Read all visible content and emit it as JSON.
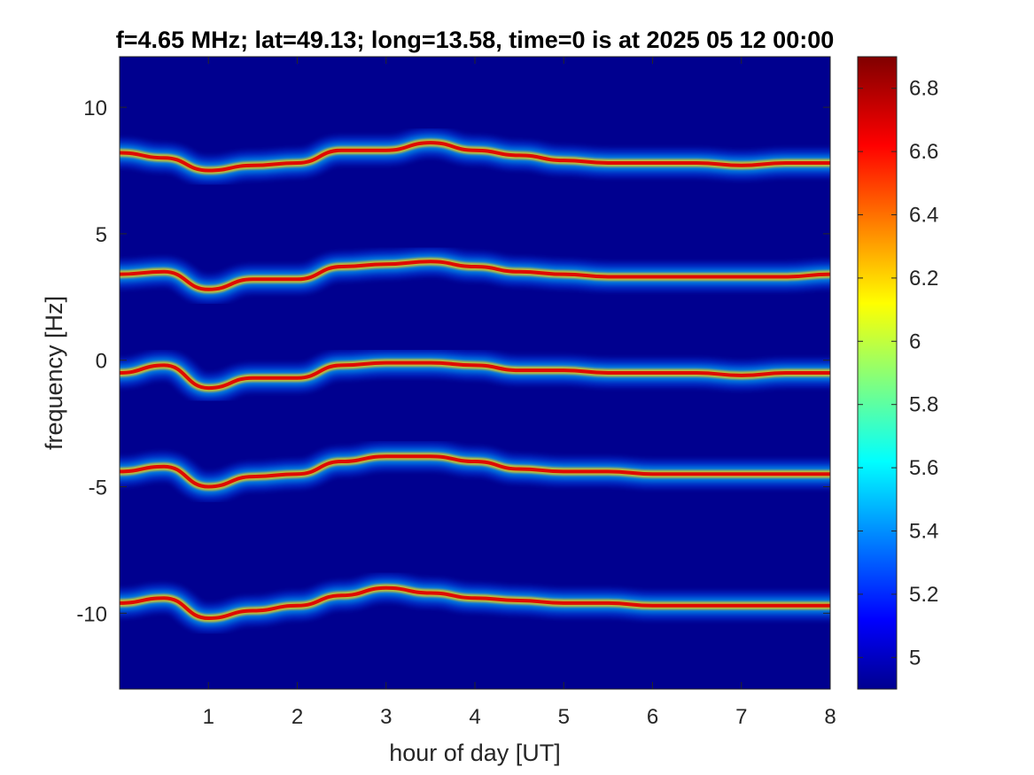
{
  "chart_data": {
    "type": "heatmap",
    "title": "f=4.65 MHz;  lat=49.13; long=13.58, time=0 is at 2025 05 12 00:00",
    "xlabel": "hour of day [UT]",
    "ylabel": "frequency [Hz]",
    "xlim": [
      0,
      8
    ],
    "ylim": [
      -13,
      12
    ],
    "xticks": [
      "1",
      "2",
      "3",
      "4",
      "5",
      "6",
      "7",
      "8"
    ],
    "yticks": [
      "-10",
      "-5",
      "0",
      "5",
      "10"
    ],
    "colorbar": {
      "colormap": "jet",
      "limits": [
        4.9,
        6.9
      ],
      "ticks": [
        "5",
        "5.2",
        "5.4",
        "5.6",
        "5.8",
        "6",
        "6.2",
        "6.4",
        "6.6",
        "6.8"
      ]
    },
    "background_value": 4.9,
    "series": [
      {
        "x": [
          0,
          0.5,
          1.0,
          1.5,
          2.0,
          2.5,
          3.0,
          3.5,
          4.0,
          4.5,
          5.0,
          5.5,
          6.0,
          6.5,
          7.0,
          7.5,
          8.0
        ],
        "y": [
          8.2,
          8.0,
          7.5,
          7.7,
          7.8,
          8.3,
          8.3,
          8.6,
          8.3,
          8.1,
          7.9,
          7.8,
          7.8,
          7.8,
          7.7,
          7.8,
          7.8
        ]
      },
      {
        "x": [
          0,
          0.5,
          1.0,
          1.5,
          2.0,
          2.5,
          3.0,
          3.5,
          4.0,
          4.5,
          5.0,
          5.5,
          6.0,
          6.5,
          7.0,
          7.5,
          8.0
        ],
        "y": [
          3.4,
          3.5,
          2.8,
          3.2,
          3.2,
          3.7,
          3.8,
          3.9,
          3.7,
          3.5,
          3.4,
          3.3,
          3.3,
          3.3,
          3.3,
          3.3,
          3.4
        ]
      },
      {
        "x": [
          0,
          0.5,
          1.0,
          1.5,
          2.0,
          2.5,
          3.0,
          3.5,
          4.0,
          4.5,
          5.0,
          5.5,
          6.0,
          6.5,
          7.0,
          7.5,
          8.0
        ],
        "y": [
          -0.5,
          -0.2,
          -1.1,
          -0.7,
          -0.7,
          -0.2,
          -0.1,
          -0.1,
          -0.2,
          -0.4,
          -0.4,
          -0.5,
          -0.5,
          -0.5,
          -0.6,
          -0.5,
          -0.5
        ]
      },
      {
        "x": [
          0,
          0.5,
          1.0,
          1.5,
          2.0,
          2.5,
          3.0,
          3.5,
          4.0,
          4.5,
          5.0,
          5.5,
          6.0,
          6.5,
          7.0,
          7.5,
          8.0
        ],
        "y": [
          -4.4,
          -4.2,
          -5.0,
          -4.6,
          -4.5,
          -4.0,
          -3.8,
          -3.8,
          -4.0,
          -4.3,
          -4.4,
          -4.4,
          -4.5,
          -4.5,
          -4.5,
          -4.5,
          -4.5
        ]
      },
      {
        "x": [
          0,
          0.5,
          1.0,
          1.5,
          2.0,
          2.5,
          3.0,
          3.5,
          4.0,
          4.5,
          5.0,
          5.5,
          6.0,
          6.5,
          7.0,
          7.5,
          8.0
        ],
        "y": [
          -9.6,
          -9.4,
          -10.2,
          -9.9,
          -9.7,
          -9.3,
          -9.0,
          -9.2,
          -9.4,
          -9.5,
          -9.6,
          -9.6,
          -9.7,
          -9.7,
          -9.7,
          -9.7,
          -9.7
        ]
      }
    ]
  }
}
